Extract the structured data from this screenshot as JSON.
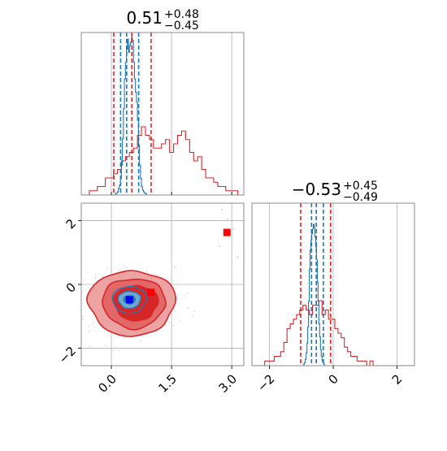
{
  "chart_data": {
    "type": "corner",
    "parameters": [
      {
        "title_value": "0.51",
        "title_plus": "+0.48",
        "title_minus": "−0.45",
        "range": [
          -0.75,
          3.3
        ],
        "ticks": [
          0.0,
          1.5,
          3.0
        ],
        "tick_labels": [
          "0.0",
          "1.5",
          "3.0"
        ],
        "broad_lines": [
          0.06,
          0.51,
          0.99
        ],
        "narrow_lines": [
          0.23,
          0.38,
          0.68
        ]
      },
      {
        "title_value": "−0.53",
        "title_plus": "+0.45",
        "title_minus": "−0.49",
        "range": [
          -2.55,
          2.55
        ],
        "ticks": [
          -2,
          0,
          2
        ],
        "tick_labels": [
          "−2",
          "0",
          "2"
        ],
        "broad_lines": [
          -1.02,
          -0.53,
          -0.08
        ],
        "narrow_lines": [
          -0.68,
          -0.53,
          -0.31
        ]
      }
    ],
    "hist1_broad": {
      "edges_start": -0.75,
      "bin_width": 0.1,
      "counts": [
        0,
        0,
        1,
        1,
        2,
        2,
        4,
        4,
        5,
        6,
        8,
        9,
        10,
        11,
        14,
        16,
        14,
        13,
        11,
        11,
        12,
        13,
        10,
        12,
        14,
        15,
        13,
        10,
        8,
        9,
        6,
        4,
        4,
        3,
        2,
        2,
        1,
        1,
        1,
        0,
        0,
        1,
        0,
        0,
        0,
        0,
        0,
        0,
        0,
        0
      ]
    },
    "hist1_narrow": {
      "edges_start": 0.0,
      "bin_width": 0.025,
      "counts": [
        0,
        0,
        0,
        0,
        1,
        1,
        2,
        4,
        6,
        10,
        18,
        34,
        52,
        70,
        80,
        88,
        94,
        86,
        90,
        92,
        95,
        93,
        80,
        70,
        62,
        56,
        45,
        30,
        18,
        10,
        5,
        3,
        2,
        1,
        1,
        0
      ]
    },
    "hist2_broad": {
      "edges_start": -2.55,
      "bin_width": 0.1,
      "counts": [
        0,
        0,
        0,
        0,
        1,
        1,
        1,
        2,
        2,
        3,
        5,
        8,
        9,
        10,
        11,
        12,
        13,
        12,
        11,
        13,
        13,
        14,
        11,
        12,
        10,
        10,
        8,
        7,
        6,
        4,
        3,
        2,
        2,
        1,
        1,
        1,
        0,
        1,
        0,
        0,
        0,
        0,
        0,
        0,
        0,
        0,
        0,
        0,
        0,
        0,
        0
      ]
    },
    "hist2_narrow": {
      "edges_start": -1.0,
      "bin_width": 0.025,
      "counts": [
        0,
        0,
        0,
        1,
        2,
        4,
        8,
        14,
        24,
        40,
        60,
        72,
        78,
        82,
        85,
        88,
        86,
        80,
        74,
        66,
        52,
        40,
        26,
        18,
        10,
        6,
        3,
        2,
        1,
        0,
        0
      ]
    },
    "scatter_2d": {
      "broad_median": [
        0.51,
        -0.53
      ],
      "narrow_median": [
        0.45,
        -0.48
      ],
      "broad_marker": [
        0.99,
        -0.25
      ],
      "outlier_marker": [
        2.88,
        1.63
      ],
      "outlier_points": [
        [
          2.75,
          2.35
        ],
        [
          2.9,
          2.05
        ],
        [
          3.05,
          1.75
        ],
        [
          2.7,
          1.2
        ],
        [
          3.15,
          0.85
        ],
        [
          1.6,
          0.55
        ],
        [
          -0.4,
          0.2
        ],
        [
          1.9,
          -0.75
        ]
      ]
    },
    "colors": {
      "broad": "#d62728",
      "broad_fill_light": "#eea3a3",
      "broad_fill_mid": "#e36767",
      "narrow": "#1f77b4",
      "narrow_fill": "#6fa6cc",
      "median_marker": "#0000ff",
      "outlier_marker": "#ff0000",
      "grid": "#b0b0b0",
      "spine": "#808080"
    }
  }
}
